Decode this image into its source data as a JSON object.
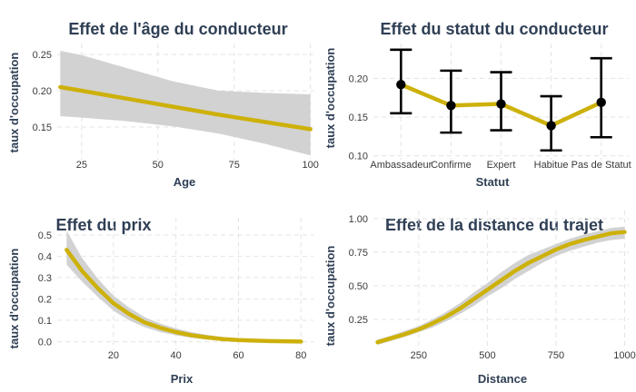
{
  "chart_data": [
    {
      "type": "line",
      "title": "Effet de l'âge du conducteur",
      "xlabel": "Age",
      "ylabel": "taux d'occupation",
      "xlim": [
        17,
        101
      ],
      "ylim": [
        0.105,
        0.265
      ],
      "xticks": [
        "25",
        "50",
        "75",
        "100"
      ],
      "yticks": [
        "0.15",
        "0.20",
        "0.25"
      ],
      "grid": true,
      "x": [
        18,
        25,
        40,
        55,
        70,
        85,
        100
      ],
      "y": [
        0.205,
        0.2,
        0.189,
        0.178,
        0.167,
        0.157,
        0.147
      ],
      "lower": [
        0.165,
        0.163,
        0.158,
        0.151,
        0.141,
        0.127,
        0.111
      ],
      "upper": [
        0.255,
        0.249,
        0.231,
        0.213,
        0.2,
        0.197,
        0.195
      ]
    },
    {
      "type": "line",
      "title": "Effet du statut du conducteur",
      "xlabel": "Statut",
      "ylabel": "taux d'occupation",
      "ylim": [
        0.095,
        0.245
      ],
      "yticks": [
        "0.10",
        "0.15",
        "0.20"
      ],
      "grid": true,
      "categories": [
        "Ambassadeur",
        "Confirme",
        "Expert",
        "Habitue",
        "Pas de Statut"
      ],
      "values": [
        0.192,
        0.165,
        0.167,
        0.139,
        0.169
      ],
      "lower": [
        0.155,
        0.13,
        0.133,
        0.107,
        0.124
      ],
      "upper": [
        0.237,
        0.21,
        0.208,
        0.177,
        0.226
      ]
    },
    {
      "type": "line",
      "title": "Effet du prix",
      "xlabel": "Prix",
      "ylabel": "taux d'occupation",
      "xlim": [
        2,
        84
      ],
      "ylim": [
        -0.04,
        0.58
      ],
      "xticks": [
        "20",
        "40",
        "60",
        "80"
      ],
      "yticks": [
        "0.0",
        "0.1",
        "0.2",
        "0.3",
        "0.4",
        "0.5"
      ],
      "grid": true,
      "x": [
        5,
        10,
        15,
        20,
        25,
        30,
        35,
        40,
        45,
        50,
        55,
        60,
        65,
        70,
        75,
        80
      ],
      "y": [
        0.43,
        0.33,
        0.25,
        0.18,
        0.13,
        0.09,
        0.065,
        0.045,
        0.03,
        0.02,
        0.012,
        0.008,
        0.005,
        0.003,
        0.002,
        0.001
      ],
      "lower": [
        0.36,
        0.28,
        0.21,
        0.145,
        0.1,
        0.068,
        0.045,
        0.03,
        0.018,
        0.01,
        0.005,
        0.002,
        0.001,
        0.0,
        0.0,
        0.0
      ],
      "upper": [
        0.52,
        0.39,
        0.295,
        0.215,
        0.16,
        0.115,
        0.085,
        0.062,
        0.045,
        0.032,
        0.022,
        0.016,
        0.012,
        0.009,
        0.007,
        0.005
      ]
    },
    {
      "type": "line",
      "title": "Effet de la distance du trajet",
      "xlabel": "Distance",
      "ylabel": "taux d'occupation",
      "xlim": [
        85,
        1015
      ],
      "ylim": [
        0.02,
        1.06
      ],
      "xticks": [
        "250",
        "500",
        "750",
        "1000"
      ],
      "yticks": [
        "0.25",
        "0.50",
        "0.75",
        "1.00"
      ],
      "grid": true,
      "x": [
        100,
        150,
        200,
        250,
        300,
        350,
        400,
        450,
        500,
        550,
        600,
        650,
        700,
        750,
        800,
        850,
        900,
        950,
        1000
      ],
      "y": [
        0.08,
        0.11,
        0.14,
        0.175,
        0.22,
        0.27,
        0.33,
        0.4,
        0.47,
        0.54,
        0.61,
        0.67,
        0.72,
        0.77,
        0.81,
        0.84,
        0.865,
        0.89,
        0.9
      ],
      "lower": [
        0.06,
        0.09,
        0.12,
        0.155,
        0.19,
        0.235,
        0.29,
        0.35,
        0.42,
        0.48,
        0.55,
        0.61,
        0.67,
        0.72,
        0.76,
        0.79,
        0.82,
        0.84,
        0.85
      ],
      "upper": [
        0.1,
        0.13,
        0.165,
        0.2,
        0.25,
        0.305,
        0.37,
        0.45,
        0.52,
        0.6,
        0.67,
        0.73,
        0.77,
        0.81,
        0.85,
        0.88,
        0.905,
        0.93,
        0.94
      ]
    }
  ]
}
